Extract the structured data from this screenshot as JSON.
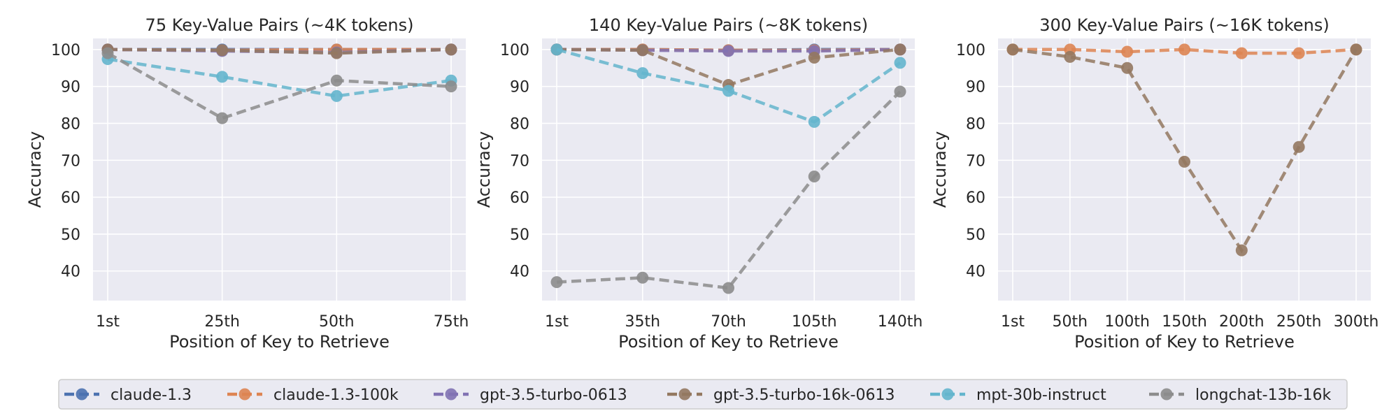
{
  "chart_data": [
    {
      "type": "line",
      "title": "75 Key-Value Pairs (~4K tokens)",
      "xlabel": "Position of Key to Retrieve",
      "ylabel": "Accuracy",
      "categories": [
        "1st",
        "25th",
        "50th",
        "75th"
      ],
      "ylim": [
        32,
        103
      ],
      "yticks": [
        40,
        50,
        60,
        70,
        80,
        90,
        100
      ],
      "grid": true,
      "series": [
        {
          "name": "claude-1.3",
          "values": [
            100,
            100,
            100,
            100
          ]
        },
        {
          "name": "claude-1.3-100k",
          "values": [
            100,
            99.8,
            100,
            100
          ]
        },
        {
          "name": "gpt-3.5-turbo-0613",
          "values": [
            100,
            99.6,
            99.2,
            100
          ]
        },
        {
          "name": "gpt-3.5-turbo-16k-0613",
          "values": [
            100,
            99.8,
            99,
            100
          ]
        },
        {
          "name": "mpt-30b-instruct",
          "values": [
            97.4,
            92.6,
            87.4,
            91.6
          ]
        },
        {
          "name": "longchat-13b-16k",
          "values": [
            99,
            81.4,
            91.6,
            90
          ]
        }
      ]
    },
    {
      "type": "line",
      "title": "140 Key-Value Pairs (~8K tokens)",
      "xlabel": "Position of Key to Retrieve",
      "ylabel": "Accuracy",
      "categories": [
        "1st",
        "35th",
        "70th",
        "105th",
        "140th"
      ],
      "ylim": [
        32,
        103
      ],
      "yticks": [
        40,
        50,
        60,
        70,
        80,
        90,
        100
      ],
      "grid": true,
      "series": [
        {
          "name": "claude-1.3",
          "values": [
            100,
            100,
            99.8,
            100,
            100
          ]
        },
        {
          "name": "claude-1.3-100k",
          "values": [
            100,
            100,
            99.8,
            99.8,
            100
          ]
        },
        {
          "name": "gpt-3.5-turbo-0613",
          "values": [
            100,
            99.8,
            99.6,
            99.6,
            100
          ]
        },
        {
          "name": "gpt-3.5-turbo-16k-0613",
          "values": [
            100,
            99.8,
            90.4,
            97.8,
            100
          ]
        },
        {
          "name": "mpt-30b-instruct",
          "values": [
            100,
            93.6,
            88.8,
            80.4,
            96.4
          ]
        },
        {
          "name": "longchat-13b-16k",
          "values": [
            37,
            38.2,
            35.4,
            65.6,
            88.6
          ]
        }
      ]
    },
    {
      "type": "line",
      "title": "300 Key-Value Pairs (~16K tokens)",
      "xlabel": "Position of Key to Retrieve",
      "ylabel": "Accuracy",
      "categories": [
        "1st",
        "50th",
        "100th",
        "150th",
        "200th",
        "250th",
        "300th"
      ],
      "ylim": [
        32,
        103
      ],
      "yticks": [
        40,
        50,
        60,
        70,
        80,
        90,
        100
      ],
      "grid": true,
      "series": [
        {
          "name": "claude-1.3-100k",
          "values": [
            100,
            100,
            99.4,
            100,
            99,
            99,
            100
          ]
        },
        {
          "name": "gpt-3.5-turbo-16k-0613",
          "values": [
            100,
            98,
            95,
            69.6,
            45.6,
            73.6,
            100
          ]
        }
      ]
    }
  ],
  "legend": {
    "placement": "bottom",
    "items": [
      {
        "name": "claude-1.3",
        "color": "#4c72b0"
      },
      {
        "name": "claude-1.3-100k",
        "color": "#dd8452"
      },
      {
        "name": "gpt-3.5-turbo-0613",
        "color": "#8172b3"
      },
      {
        "name": "gpt-3.5-turbo-16k-0613",
        "color": "#937860"
      },
      {
        "name": "mpt-30b-instruct",
        "color": "#64b5cd"
      },
      {
        "name": "longchat-13b-16k",
        "color": "#8c8c8c"
      }
    ]
  },
  "colors": {
    "claude-1.3": "#4c72b0",
    "claude-1.3-100k": "#dd8452",
    "gpt-3.5-turbo-0613": "#8172b3",
    "gpt-3.5-turbo-16k-0613": "#937860",
    "mpt-30b-instruct": "#64b5cd",
    "longchat-13b-16k": "#8c8c8c",
    "axes_background": "#eaeaf2",
    "grid": "#ffffff"
  }
}
